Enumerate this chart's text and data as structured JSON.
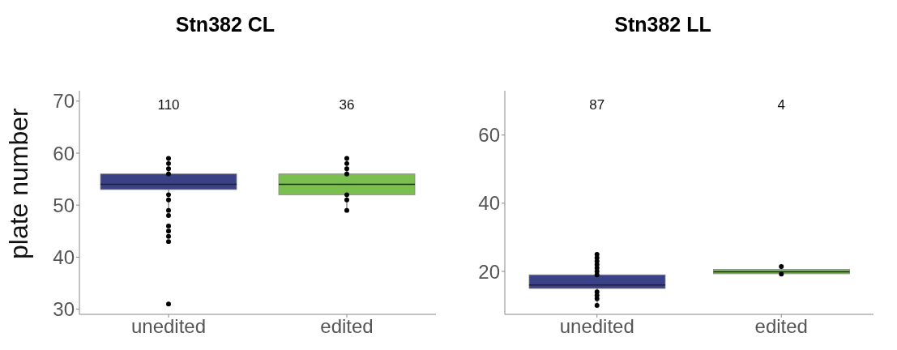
{
  "chart_data": [
    {
      "type": "box",
      "title": "Stn382 CL",
      "ylabel": "plate number",
      "categories": [
        "unedited",
        "edited"
      ],
      "ylim": [
        29,
        72
      ],
      "yticks": [
        30,
        40,
        50,
        60,
        70
      ],
      "grid": false,
      "legend": false,
      "series": [
        {
          "type": "box",
          "colors": [
            "#3b4187",
            "#7bbf4f"
          ],
          "boxes": [
            {
              "low": 49,
              "q1": 53,
              "median": 54,
              "q3": 56,
              "high": 59
            },
            {
              "low": 49,
              "q1": 52,
              "median": 54,
              "q3": 56,
              "high": 59
            }
          ]
        },
        {
          "type": "scatter",
          "color": "#000000",
          "x": [
            "unedited",
            "unedited",
            "unedited",
            "unedited",
            "unedited",
            "unedited",
            "unedited",
            "unedited",
            "unedited",
            "unedited",
            "unedited",
            "unedited",
            "unedited",
            "edited",
            "edited",
            "edited",
            "edited",
            "edited",
            "edited",
            "edited"
          ],
          "values": [
            59,
            58,
            57,
            56,
            52,
            51,
            49,
            48,
            46,
            45,
            44,
            43,
            31,
            59,
            58,
            57,
            56,
            52,
            51,
            49
          ]
        }
      ],
      "annotations": [
        "110",
        "36"
      ]
    },
    {
      "type": "box",
      "title": "Stn382 LL",
      "categories": [
        "unedited",
        "edited"
      ],
      "ylim": [
        7.4,
        73
      ],
      "yticks": [
        20,
        40,
        60
      ],
      "grid": false,
      "legend": false,
      "series": [
        {
          "type": "box",
          "colors": [
            "#3b4187",
            "#7bbf4f"
          ],
          "boxes": [
            {
              "low": 10,
              "q1": 15,
              "median": 16,
              "q3": 19,
              "high": 25
            },
            {
              "low": 19.2,
              "q1": 19.3,
              "median": 19.9,
              "q3": 20.6,
              "high": 21.4
            }
          ]
        },
        {
          "type": "scatter",
          "color": "#000000",
          "x": [
            "unedited",
            "unedited",
            "unedited",
            "unedited",
            "unedited",
            "unedited",
            "unedited",
            "unedited",
            "unedited",
            "unedited",
            "unedited",
            "edited",
            "edited"
          ],
          "values": [
            25,
            24,
            23,
            22,
            21,
            20,
            19,
            14,
            13,
            12,
            10,
            21.4,
            19.2
          ]
        }
      ],
      "annotations": [
        "87",
        "4"
      ]
    }
  ]
}
